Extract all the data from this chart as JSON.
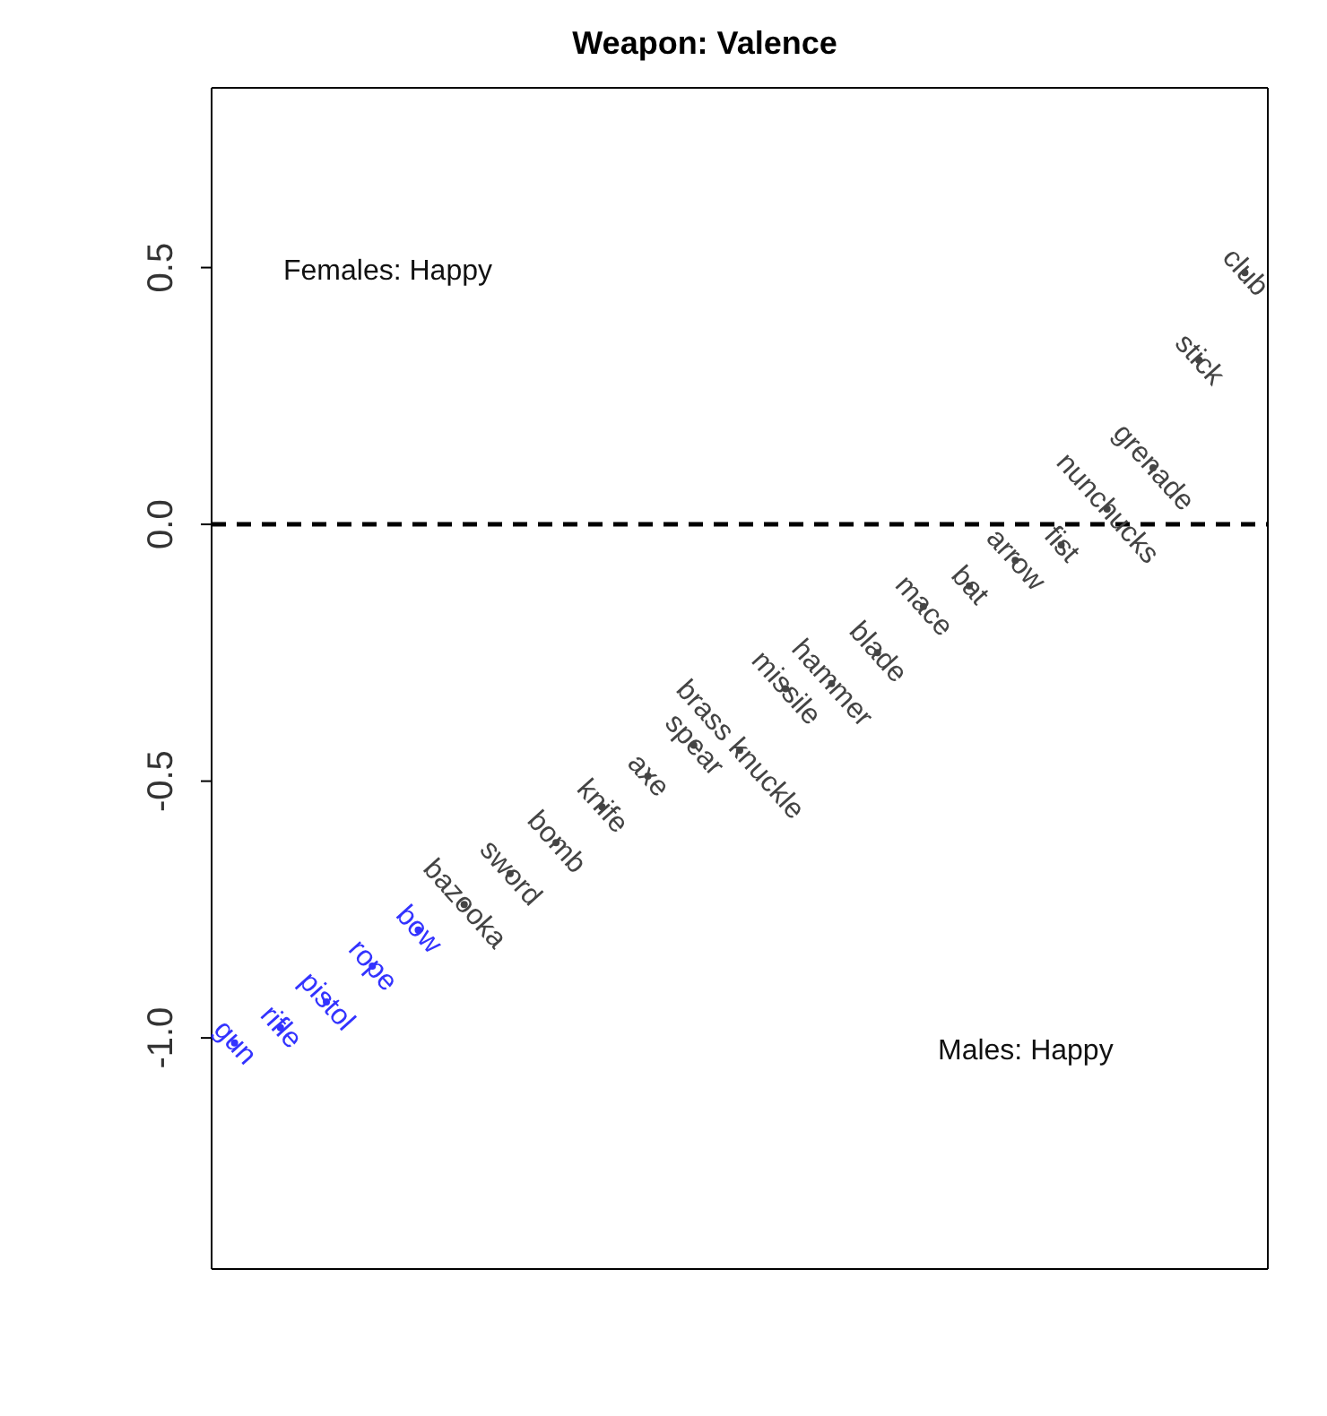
{
  "chart_data": {
    "type": "scatter",
    "title": "Weapon: Valence",
    "categories": [
      null,
      null,
      null,
      null,
      null,
      null,
      null,
      null,
      null,
      null,
      null,
      null,
      null,
      null,
      null,
      null,
      null,
      null,
      null,
      null,
      null,
      null,
      null
    ],
    "values": [
      -1.01,
      -0.98,
      -0.93,
      -0.86,
      -0.79,
      -0.74,
      -0.68,
      -0.62,
      -0.55,
      -0.49,
      -0.43,
      -0.44,
      -0.32,
      -0.31,
      -0.25,
      -0.16,
      -0.12,
      -0.07,
      -0.04,
      0.03,
      0.11,
      0.32,
      0.49
    ],
    "value_labels": [
      "gun",
      "rifle",
      "pistol",
      "rope",
      "bow",
      "bazooka",
      "sword",
      "bomb",
      "knife",
      "axe",
      "spear",
      "brass knuckle",
      "missile",
      "hammer",
      "blade",
      "mace",
      "bat",
      "arrow",
      "fist",
      "nunchucks",
      "grenade",
      "stick",
      "club"
    ],
    "colors": [
      "#3333ff",
      "#3333ff",
      "#3333ff",
      "#3333ff",
      "#3333ff",
      "#444444",
      "#444444",
      "#444444",
      "#444444",
      "#444444",
      "#444444",
      "#444444",
      "#444444",
      "#444444",
      "#444444",
      "#444444",
      "#444444",
      "#444444",
      "#444444",
      "#444444",
      "#444444",
      "#444444",
      "#444444"
    ],
    "ylim": [
      -1.45,
      0.85
    ],
    "yticks": [
      {
        "value": -1,
        "label": "-1.0"
      },
      {
        "value": -0.5,
        "label": "-0.5"
      },
      {
        "value": 0,
        "label": "0.0"
      },
      {
        "value": 0.5,
        "label": "0.5"
      }
    ],
    "ref_lines": [
      {
        "axis": "y",
        "value": 0,
        "label": null,
        "color": "#000000",
        "line_style": "dashed"
      }
    ],
    "annotations": [
      "Females: Happy",
      "Males: Happy"
    ],
    "marker": "circle",
    "grid": false,
    "legend": false,
    "tick_labels": "y"
  }
}
